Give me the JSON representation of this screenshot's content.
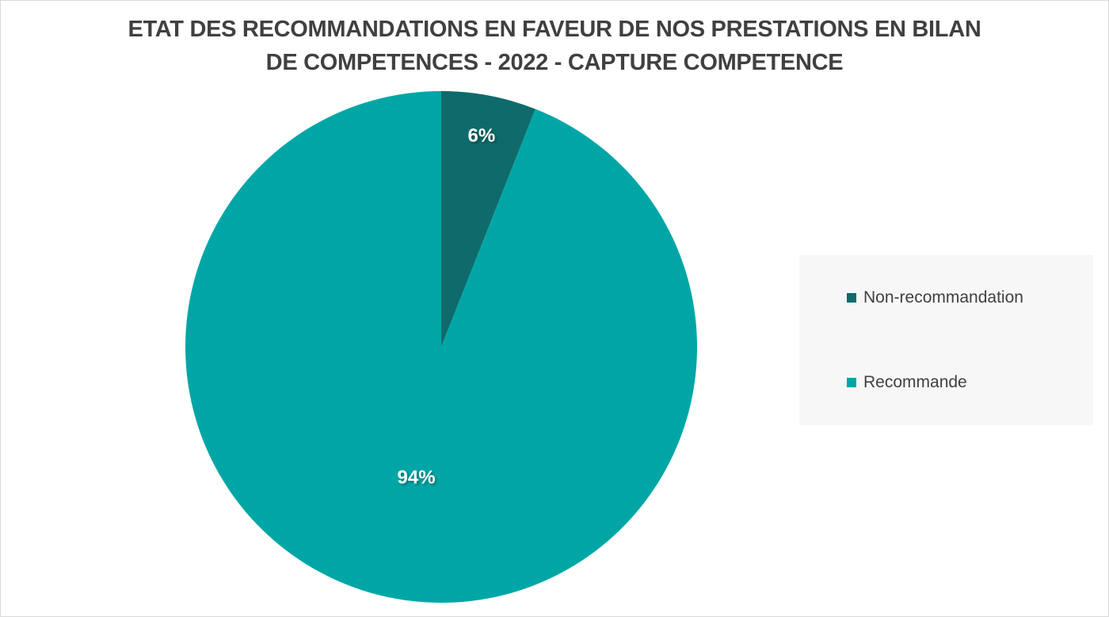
{
  "title_lines": [
    "ETAT DES RECOMMANDATIONS EN FAVEUR DE NOS PRESTATIONS EN BILAN",
    "DE COMPETENCES - 2022 - CAPTURE COMPETENCE"
  ],
  "chart_data": {
    "type": "pie",
    "title": "ETAT DES RECOMMANDATIONS EN FAVEUR DE NOS PRESTATIONS EN BILAN DE COMPETENCES - 2022 - CAPTURE COMPETENCE",
    "categories": [
      "Non-recommandation",
      "Recommande"
    ],
    "values": [
      6,
      94
    ],
    "data_labels": [
      "6%",
      "94%"
    ],
    "colors": [
      "#0f6b6b",
      "#00a6a6"
    ],
    "legend_position": "right",
    "start_angle": "top, clockwise"
  }
}
